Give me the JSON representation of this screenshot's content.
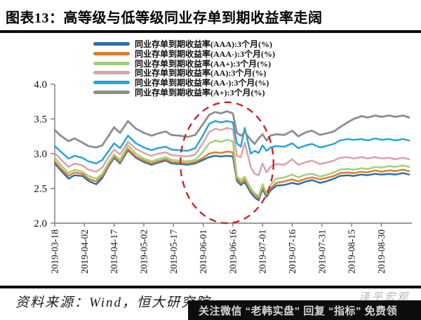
{
  "title": "图表13：高等级与低等级同业存单到期收益率走阔",
  "footer": {
    "source": "资料来源：Wind，恒大研究院",
    "watermark": "泽平宏观",
    "banner": "关注微信 “老韩实盘” 回复 “指标” 免费领",
    "banner_bg": "#0d0d0d",
    "banner_text_color": "#d6d6d6"
  },
  "chart_data": {
    "type": "line",
    "title": "高等级与低等级同业存单到期收益率走阔",
    "xlabel": "",
    "ylabel": "",
    "ylim": [
      2.0,
      4.0
    ],
    "yticks": [
      2.0,
      2.5,
      3.0,
      3.5,
      4.0
    ],
    "ytick_labels": [
      "2.0",
      "2.5",
      "3.0",
      "3.5",
      "4.0"
    ],
    "grid": false,
    "legend_position": "top",
    "axis_color": "#7a7a7a",
    "xtick_days": [
      0,
      15,
      30,
      45,
      60,
      75,
      90,
      105,
      120,
      135,
      150,
      165
    ],
    "xtick_labels": [
      "2019-03-18",
      "2019-04-02",
      "2019-04-17",
      "2019-05-02",
      "2019-05-17",
      "2019-06-01",
      "2019-06-16",
      "2019-07-01",
      "2019-07-16",
      "2019-07-31",
      "2019-08-15",
      "2019-08-30"
    ],
    "x_days": [
      0,
      3,
      7,
      10,
      14,
      17,
      21,
      24,
      27,
      30,
      33,
      37,
      41,
      45,
      49,
      52,
      56,
      59,
      63,
      67,
      71,
      75,
      78,
      81,
      84,
      87,
      90,
      92,
      94,
      96,
      99,
      101,
      103,
      105,
      107,
      109,
      112,
      116,
      120,
      123,
      127,
      130,
      134,
      137,
      141,
      144,
      148,
      151,
      155,
      158,
      162,
      165,
      169,
      172,
      176,
      179
    ],
    "x_dates": [
      "2019-03-18",
      "2019-03-21",
      "2019-03-25",
      "2019-03-28",
      "2019-04-01",
      "2019-04-04",
      "2019-04-08",
      "2019-04-11",
      "2019-04-14",
      "2019-04-17",
      "2019-04-20",
      "2019-04-24",
      "2019-04-28",
      "2019-05-02",
      "2019-05-06",
      "2019-05-09",
      "2019-05-13",
      "2019-05-16",
      "2019-05-20",
      "2019-05-24",
      "2019-05-28",
      "2019-06-01",
      "2019-06-04",
      "2019-06-07",
      "2019-06-10",
      "2019-06-13",
      "2019-06-16",
      "2019-06-18",
      "2019-06-20",
      "2019-06-22",
      "2019-06-25",
      "2019-06-27",
      "2019-06-29",
      "2019-07-01",
      "2019-07-03",
      "2019-07-05",
      "2019-07-08",
      "2019-07-12",
      "2019-07-16",
      "2019-07-19",
      "2019-07-23",
      "2019-07-26",
      "2019-07-30",
      "2019-08-02",
      "2019-08-06",
      "2019-08-09",
      "2019-08-13",
      "2019-08-16",
      "2019-08-20",
      "2019-08-23",
      "2019-08-27",
      "2019-08-30",
      "2019-09-03",
      "2019-09-06",
      "2019-09-10",
      "2019-09-13"
    ],
    "series": [
      {
        "name": "同业存单到期收益率(AAA):3个月(%)",
        "rating": "AAA",
        "color": "#2f6fa7",
        "values": [
          2.86,
          2.76,
          2.64,
          2.69,
          2.68,
          2.61,
          2.56,
          2.65,
          2.81,
          2.94,
          2.86,
          3.05,
          2.94,
          2.88,
          2.84,
          2.87,
          2.9,
          2.86,
          2.85,
          2.84,
          2.86,
          2.91,
          2.95,
          2.97,
          2.96,
          2.97,
          2.96,
          2.61,
          2.55,
          2.59,
          2.44,
          2.37,
          2.33,
          2.49,
          2.38,
          2.47,
          2.54,
          2.55,
          2.58,
          2.56,
          2.6,
          2.62,
          2.58,
          2.6,
          2.64,
          2.68,
          2.69,
          2.68,
          2.7,
          2.69,
          2.71,
          2.7,
          2.71,
          2.7,
          2.72,
          2.7
        ]
      },
      {
        "name": "同业存单到期收益率(AAA-):3个月(%)",
        "rating": "AAA-",
        "color": "#dc7e2f",
        "values": [
          2.89,
          2.79,
          2.68,
          2.73,
          2.71,
          2.64,
          2.6,
          2.68,
          2.83,
          2.96,
          2.88,
          3.07,
          2.96,
          2.9,
          2.86,
          2.89,
          2.92,
          2.88,
          2.87,
          2.86,
          2.88,
          2.94,
          3.0,
          3.02,
          3.01,
          3.03,
          3.02,
          2.64,
          2.58,
          2.63,
          2.47,
          2.41,
          2.36,
          2.52,
          2.41,
          2.5,
          2.58,
          2.6,
          2.63,
          2.6,
          2.64,
          2.66,
          2.63,
          2.65,
          2.68,
          2.72,
          2.73,
          2.72,
          2.74,
          2.73,
          2.76,
          2.74,
          2.76,
          2.75,
          2.77,
          2.75
        ]
      },
      {
        "name": "同业存单到期收益率(AA+):3个月(%)",
        "rating": "AA+",
        "color": "#a2cf7e",
        "values": [
          2.94,
          2.84,
          2.72,
          2.77,
          2.74,
          2.68,
          2.64,
          2.71,
          2.86,
          2.99,
          2.91,
          3.12,
          3.0,
          2.93,
          2.89,
          2.92,
          2.95,
          2.91,
          2.9,
          2.89,
          2.91,
          3.03,
          3.15,
          3.19,
          3.17,
          3.2,
          3.18,
          2.67,
          2.62,
          2.67,
          2.5,
          2.43,
          2.39,
          2.56,
          2.43,
          2.55,
          2.64,
          2.66,
          2.7,
          2.66,
          2.7,
          2.71,
          2.67,
          2.69,
          2.73,
          2.77,
          2.78,
          2.77,
          2.79,
          2.78,
          2.81,
          2.8,
          2.82,
          2.81,
          2.83,
          2.81
        ]
      },
      {
        "name": "同业存单到期收益率(AA):3个月(%)",
        "rating": "AA",
        "color": "#d9a3aa",
        "values": [
          3.01,
          2.92,
          2.81,
          2.86,
          2.83,
          2.77,
          2.74,
          2.8,
          2.94,
          3.06,
          2.99,
          3.17,
          3.07,
          3.01,
          2.97,
          3.0,
          3.02,
          2.98,
          2.97,
          2.96,
          2.99,
          3.16,
          3.31,
          3.36,
          3.34,
          3.37,
          3.35,
          2.97,
          2.95,
          3.16,
          2.81,
          2.71,
          2.69,
          2.86,
          2.73,
          2.81,
          2.85,
          2.84,
          2.92,
          2.84,
          2.88,
          2.9,
          2.85,
          2.87,
          2.9,
          2.94,
          2.95,
          2.93,
          2.95,
          2.93,
          2.95,
          2.93,
          2.94,
          2.92,
          2.94,
          2.92
        ]
      },
      {
        "name": "同业存单到期收益率(AA-):3个月(%)",
        "rating": "AA-",
        "color": "#29a3dc",
        "values": [
          3.11,
          3.03,
          2.93,
          2.97,
          2.94,
          2.89,
          2.86,
          2.91,
          3.03,
          3.15,
          3.08,
          3.26,
          3.15,
          3.09,
          3.05,
          3.08,
          3.1,
          3.06,
          3.05,
          3.04,
          3.08,
          3.27,
          3.43,
          3.47,
          3.45,
          3.47,
          3.45,
          3.15,
          3.1,
          3.37,
          3.0,
          3.04,
          3.01,
          3.12,
          3.04,
          3.09,
          3.11,
          3.1,
          3.15,
          3.08,
          3.12,
          3.14,
          3.09,
          3.11,
          3.14,
          3.19,
          3.21,
          3.2,
          3.21,
          3.19,
          3.22,
          3.2,
          3.21,
          3.19,
          3.21,
          3.19
        ]
      },
      {
        "name": "同业存单到期收益率(A+):3个月(%)",
        "rating": "A+",
        "color": "#8e8e8e",
        "values": [
          3.34,
          3.26,
          3.18,
          3.22,
          3.16,
          3.11,
          3.09,
          3.12,
          3.25,
          3.38,
          3.3,
          3.47,
          3.36,
          3.3,
          3.26,
          3.29,
          3.32,
          3.27,
          3.26,
          3.24,
          3.27,
          3.43,
          3.56,
          3.6,
          3.58,
          3.61,
          3.58,
          3.3,
          3.26,
          3.31,
          3.2,
          3.14,
          3.22,
          3.28,
          3.19,
          3.26,
          3.28,
          3.27,
          3.33,
          3.25,
          3.31,
          3.33,
          3.27,
          3.29,
          3.32,
          3.38,
          3.45,
          3.5,
          3.54,
          3.52,
          3.55,
          3.53,
          3.55,
          3.53,
          3.55,
          3.52
        ]
      }
    ],
    "annotation_ellipse": {
      "description": "red dashed ellipse highlighting the mid-June yield divergence",
      "center_day": 87,
      "center_value": 2.87,
      "radius_days": 23.5,
      "radius_value": 0.87,
      "color": "#cb2727",
      "dashed": true
    }
  }
}
